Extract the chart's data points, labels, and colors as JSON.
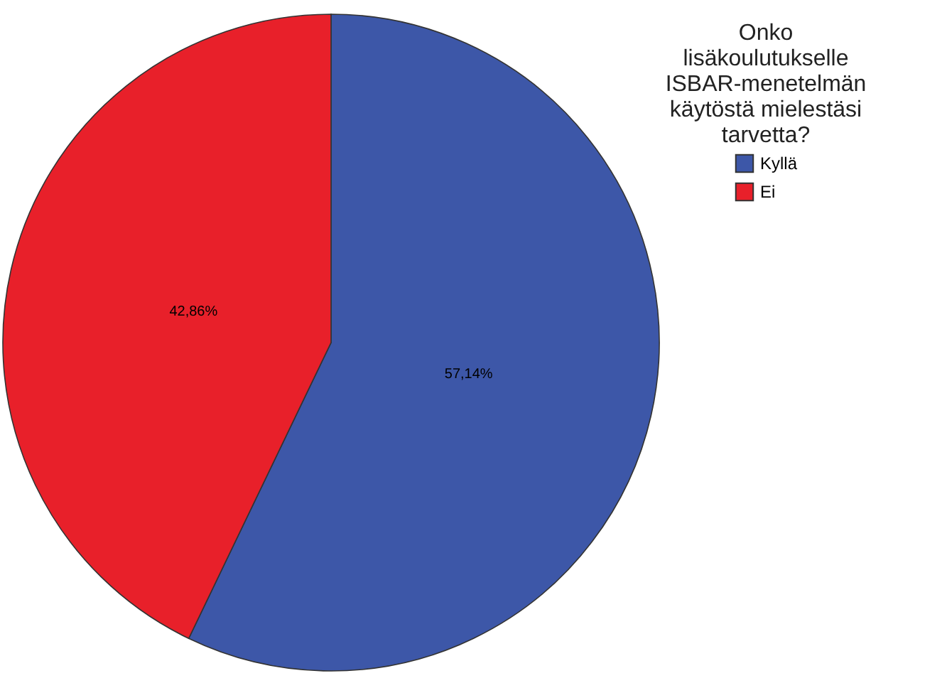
{
  "chart_data": {
    "type": "pie",
    "legend_title": "Onko lisäkoulutukselle ISBAR-menetelmän käytöstä mielestäsi tarvetta?",
    "categories": [
      "Kyllä",
      "Ei"
    ],
    "values": [
      57.14,
      42.86
    ],
    "colors": [
      "#3d57a8",
      "#e8202a"
    ],
    "value_labels": [
      "57,14%",
      "42,86%"
    ],
    "legend": "top right"
  }
}
